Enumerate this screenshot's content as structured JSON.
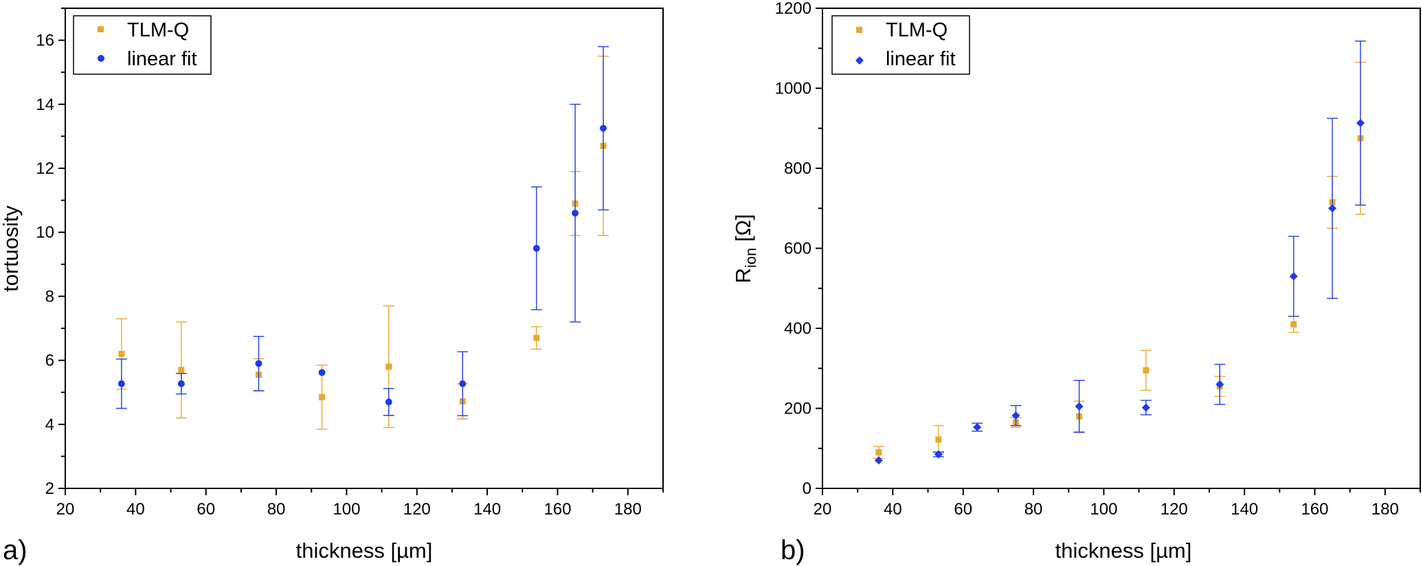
{
  "colors": {
    "tlmq": "#E8A92E",
    "fit": "#1F3BE8"
  },
  "chart_data": [
    {
      "type": "scatter",
      "panel_label": "a)",
      "xlabel": "thickness [µm]",
      "ylabel": "tortuosity",
      "xlim": [
        20,
        190
      ],
      "ylim": [
        2,
        17
      ],
      "x_ticks": [
        20,
        40,
        60,
        80,
        100,
        120,
        140,
        160,
        180
      ],
      "y_ticks": [
        2,
        4,
        6,
        8,
        10,
        12,
        14,
        16
      ],
      "grid": false,
      "legend_position": "top-left",
      "error_bars": true,
      "series": [
        {
          "name": "TLM-Q",
          "marker": "square",
          "color": "#E8A92E",
          "x": [
            36,
            53,
            75,
            93,
            112,
            133,
            154,
            165,
            173
          ],
          "y": [
            6.2,
            5.7,
            5.55,
            4.85,
            5.8,
            4.72,
            6.7,
            10.9,
            12.7
          ],
          "err_low": [
            1.1,
            1.5,
            0.5,
            1.0,
            1.9,
            0.55,
            0.35,
            1.0,
            2.8
          ],
          "err_high": [
            1.1,
            1.5,
            0.5,
            1.0,
            1.9,
            0.55,
            0.35,
            1.0,
            2.8
          ]
        },
        {
          "name": "linear fit",
          "marker": "circle",
          "color": "#1F3BE8",
          "x": [
            36,
            53,
            75,
            93,
            112,
            133,
            154,
            165,
            173
          ],
          "y": [
            5.27,
            5.27,
            5.9,
            5.62,
            4.7,
            5.27,
            9.5,
            10.6,
            13.25
          ],
          "err_low": [
            0.77,
            0.32,
            0.85,
            0,
            0.42,
            1.0,
            1.92,
            3.4,
            2.55
          ],
          "err_high": [
            0.77,
            0.32,
            0.85,
            0,
            0.42,
            1.0,
            1.92,
            3.4,
            2.55
          ]
        }
      ]
    },
    {
      "type": "scatter",
      "panel_label": "b)",
      "xlabel": "thickness [µm]",
      "ylabel_main": "R",
      "ylabel_sub": "ion",
      "ylabel_unit": " [Ω]",
      "xlim": [
        20,
        190
      ],
      "ylim": [
        0,
        1200
      ],
      "x_ticks": [
        20,
        40,
        60,
        80,
        100,
        120,
        140,
        160,
        180
      ],
      "y_ticks": [
        0,
        200,
        400,
        600,
        800,
        1000,
        1200
      ],
      "grid": false,
      "legend_position": "top-left",
      "error_bars": true,
      "series": [
        {
          "name": "TLM-Q",
          "marker": "square",
          "color": "#E8A92E",
          "x": [
            36,
            53,
            75,
            93,
            112,
            133,
            154,
            165,
            173
          ],
          "y": [
            90,
            122,
            165,
            180,
            295,
            255,
            410,
            715,
            875
          ],
          "err_low": [
            15,
            35,
            12,
            38,
            50,
            25,
            20,
            65,
            190
          ],
          "err_high": [
            15,
            35,
            12,
            38,
            50,
            25,
            20,
            65,
            190
          ]
        },
        {
          "name": "linear fit",
          "marker": "diamond",
          "color": "#1F3BE8",
          "x": [
            36,
            53,
            64,
            75,
            93,
            112,
            133,
            154,
            165,
            173
          ],
          "y": [
            70,
            85,
            153,
            182,
            205,
            202,
            260,
            530,
            700,
            913
          ],
          "err_low": [
            0,
            6,
            10,
            25,
            65,
            18,
            50,
            100,
            225,
            205
          ],
          "err_high": [
            0,
            6,
            10,
            25,
            65,
            18,
            50,
            100,
            225,
            205
          ]
        }
      ]
    }
  ]
}
